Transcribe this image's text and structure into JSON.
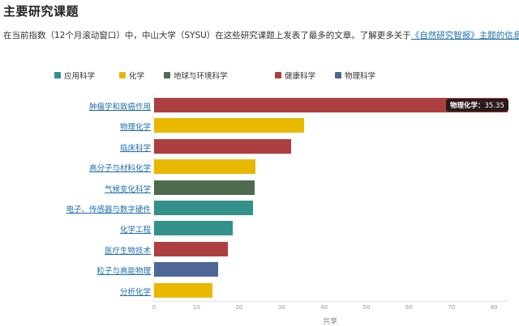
{
  "header": {
    "title": "主要研究课题",
    "description_prefix": "在当前指数（12个月滚动窗口）中，中山大学（SYSU）在这些研究课题上发表了最多的文章。了解更多关于",
    "description_link": "《自然研究智报》主题的信息",
    "description_suffix": "。"
  },
  "legend": [
    {
      "label": "应用科学",
      "color": "#33918a"
    },
    {
      "label": "化学",
      "color": "#e8b900"
    },
    {
      "label": "地球与环境科学",
      "color": "#4f6b4e"
    },
    {
      "label": "健康科学",
      "color": "#ad3f40"
    },
    {
      "label": "物理科学",
      "color": "#4f6796"
    }
  ],
  "tooltip": {
    "label": "物理化学：",
    "value": "35.35"
  },
  "chart_data": {
    "type": "bar",
    "orientation": "horizontal",
    "title": "主要研究课题",
    "xlabel": "共享",
    "ylabel": "",
    "xlim": [
      0,
      83
    ],
    "xticks": [
      0,
      10,
      20,
      30,
      40,
      50,
      60,
      70,
      80
    ],
    "grid": false,
    "legend_position": "top",
    "categories": [
      "肿瘤学和致癌作用",
      "物理化学",
      "临床科学",
      "高分子与材料化学",
      "气候变化科学",
      "电子、传感器与数字硬件",
      "化学工程",
      "医疗生物技术",
      "粒子与高能物理",
      "分析化学"
    ],
    "values": [
      83.3,
      35.35,
      32.3,
      23.8,
      23.6,
      23.3,
      18.5,
      17.3,
      15.1,
      13.7
    ],
    "groups": [
      "健康科学",
      "化学",
      "健康科学",
      "化学",
      "地球与环境科学",
      "应用科学",
      "应用科学",
      "健康科学",
      "物理科学",
      "化学"
    ],
    "colors": [
      "#ad3f40",
      "#e8b900",
      "#ad3f40",
      "#e8b900",
      "#4f6b4e",
      "#33918a",
      "#33918a",
      "#ad3f40",
      "#4f6796",
      "#e8b900"
    ]
  }
}
